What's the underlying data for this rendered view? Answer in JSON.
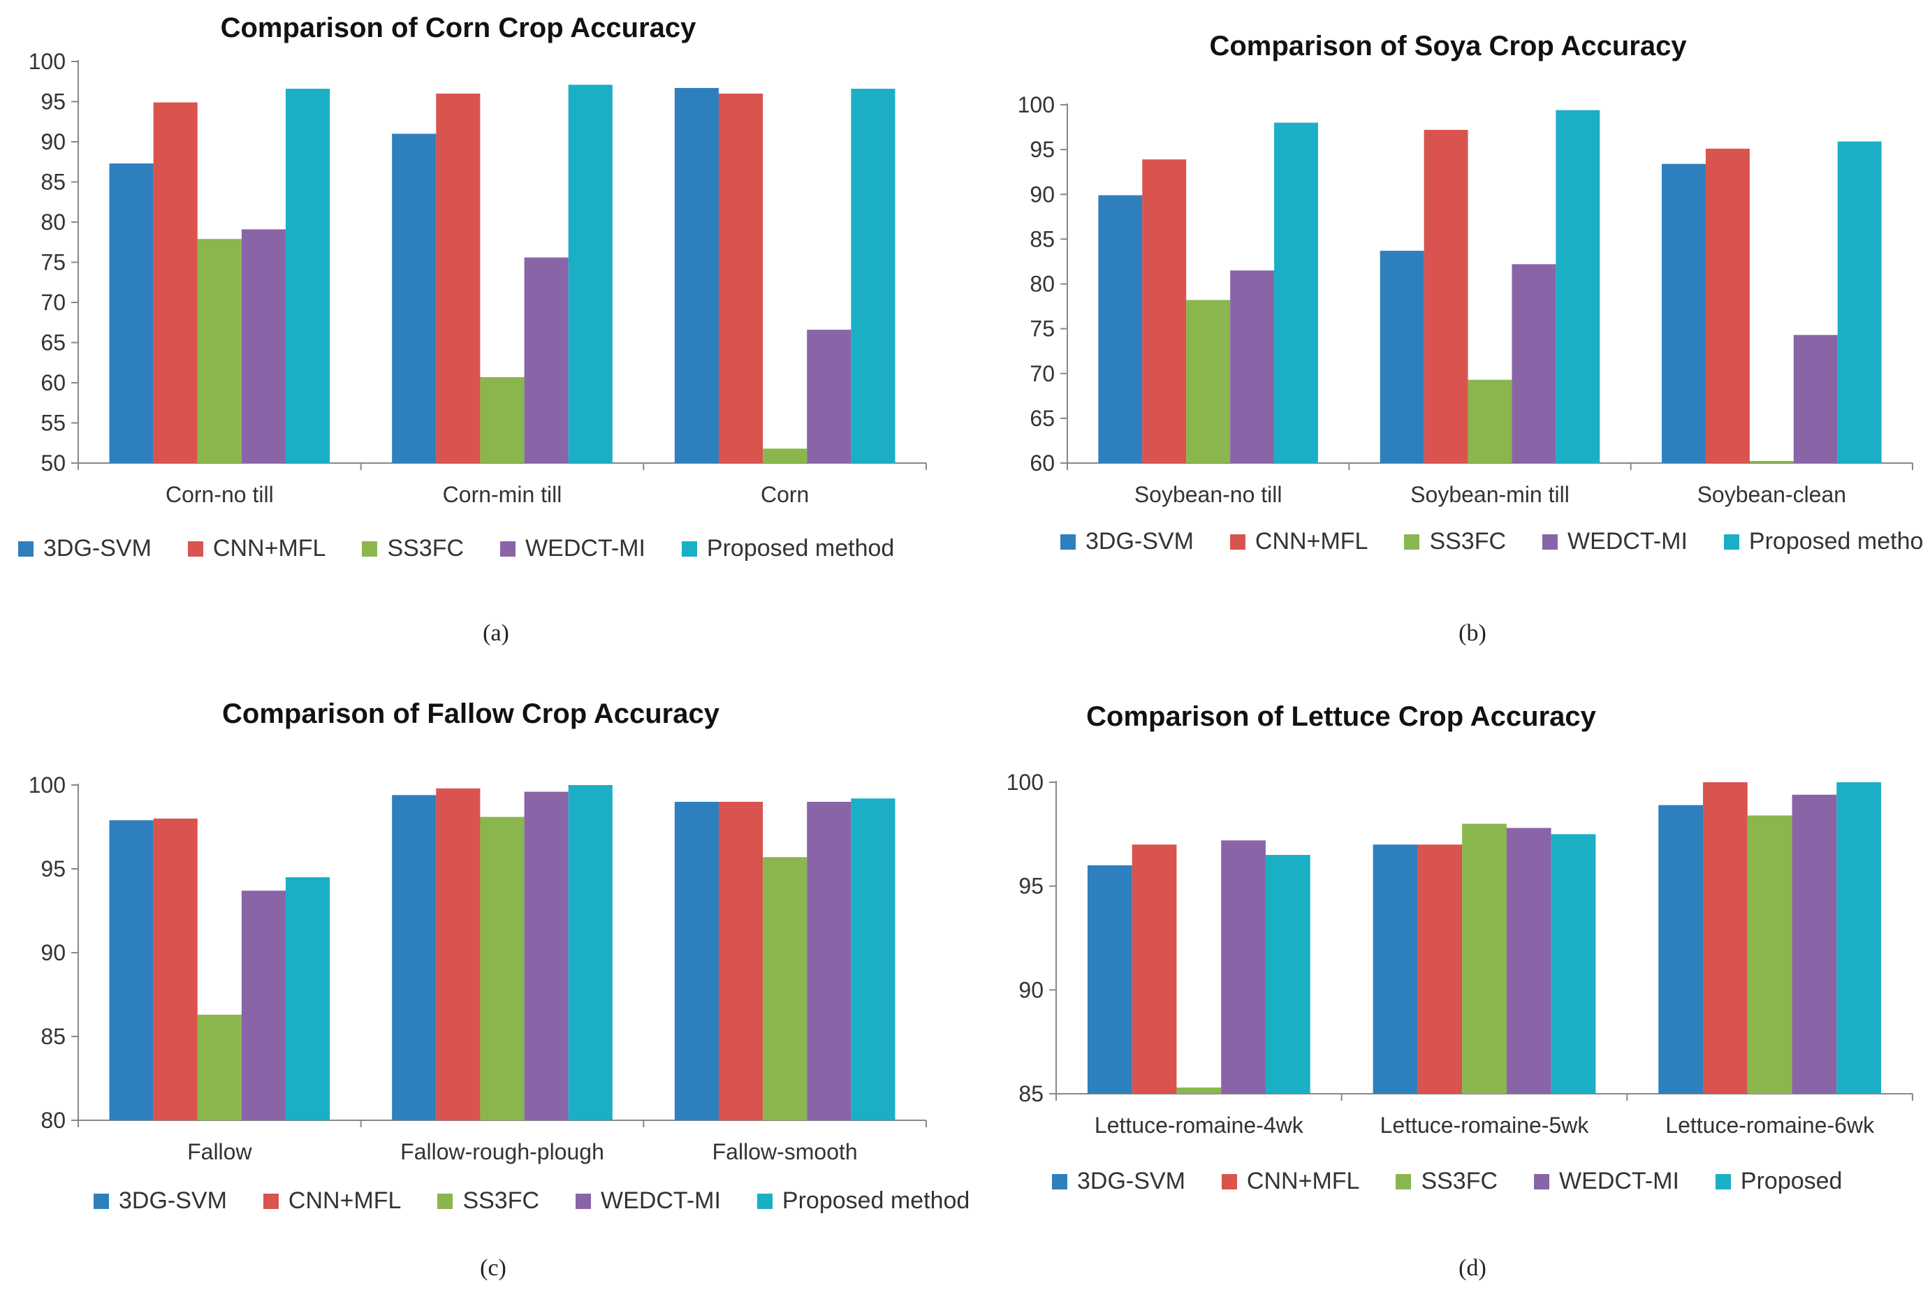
{
  "colors": {
    "3DG-SVM": "#2E7FBE",
    "CNN+MFL": "#D9534F",
    "SS3FC": "#8BB64E",
    "WEDCT-MI": "#8965A8",
    "Proposed": "#1BAFC6"
  },
  "chart_data": [
    {
      "type": "bar",
      "title": "Comparison of Corn Crop Accuracy",
      "caption": "(a)",
      "categories": [
        "Corn-no till",
        "Corn-min till",
        "Corn"
      ],
      "ylim": [
        50,
        100
      ],
      "yticks": [
        50,
        55,
        60,
        65,
        70,
        75,
        80,
        85,
        90,
        95,
        100
      ],
      "xlabel": "",
      "ylabel": "",
      "legend_position": "bottom",
      "series": [
        {
          "name": "3DG-SVM",
          "values": [
            87.3,
            91.0,
            96.7
          ]
        },
        {
          "name": "CNN+MFL",
          "values": [
            94.9,
            96.0,
            96.0
          ]
        },
        {
          "name": "SS3FC",
          "values": [
            77.9,
            60.7,
            51.8
          ]
        },
        {
          "name": "WEDCT-MI",
          "values": [
            79.1,
            75.6,
            66.6
          ]
        },
        {
          "name": "Proposed method",
          "values": [
            96.6,
            97.1,
            96.6
          ]
        }
      ]
    },
    {
      "type": "bar",
      "title": "Comparison of Soya Crop Accuracy",
      "caption": "(b)",
      "categories": [
        "Soybean-no till",
        "Soybean-min till",
        "Soybean-clean"
      ],
      "ylim": [
        60,
        100
      ],
      "yticks": [
        60,
        65,
        70,
        75,
        80,
        85,
        90,
        95,
        100
      ],
      "xlabel": "",
      "ylabel": "",
      "legend_position": "bottom",
      "series": [
        {
          "name": "3DG-SVM",
          "values": [
            89.9,
            83.7,
            93.4
          ]
        },
        {
          "name": "CNN+MFL",
          "values": [
            93.9,
            97.2,
            95.1
          ]
        },
        {
          "name": "SS3FC",
          "values": [
            78.2,
            69.3,
            59.8
          ]
        },
        {
          "name": "WEDCT-MI",
          "values": [
            81.5,
            82.2,
            74.3
          ]
        },
        {
          "name": "Proposed method",
          "values": [
            98.0,
            99.4,
            95.9
          ]
        }
      ]
    },
    {
      "type": "bar",
      "title": "Comparison of Fallow Crop Accuracy",
      "caption": "(c)",
      "categories": [
        "Fallow",
        "Fallow-rough-plough",
        "Fallow-smooth"
      ],
      "ylim": [
        80,
        100
      ],
      "yticks": [
        80,
        85,
        90,
        95,
        100
      ],
      "xlabel": "",
      "ylabel": "",
      "legend_position": "bottom",
      "series": [
        {
          "name": "3DG-SVM",
          "values": [
            97.9,
            99.4,
            99.0
          ]
        },
        {
          "name": "CNN+MFL",
          "values": [
            98.0,
            99.8,
            99.0
          ]
        },
        {
          "name": "SS3FC",
          "values": [
            86.3,
            98.1,
            95.7
          ]
        },
        {
          "name": "WEDCT-MI",
          "values": [
            93.7,
            99.6,
            99.0
          ]
        },
        {
          "name": "Proposed method",
          "values": [
            94.5,
            100.0,
            99.2
          ]
        }
      ]
    },
    {
      "type": "bar",
      "title": "Comparison of Lettuce Crop Accuracy",
      "caption": "(d)",
      "categories": [
        "Lettuce-romaine-4wk",
        "Lettuce-romaine-5wk",
        "Lettuce-romaine-6wk"
      ],
      "ylim": [
        85,
        100
      ],
      "yticks": [
        85,
        90,
        95,
        100
      ],
      "xlabel": "",
      "ylabel": "",
      "legend_position": "bottom",
      "series": [
        {
          "name": "3DG-SVM",
          "values": [
            96.0,
            97.0,
            98.9
          ]
        },
        {
          "name": "CNN+MFL",
          "values": [
            97.0,
            97.0,
            100.0
          ]
        },
        {
          "name": "SS3FC",
          "values": [
            85.3,
            98.0,
            98.4
          ]
        },
        {
          "name": "WEDCT-MI",
          "values": [
            97.2,
            97.8,
            99.4
          ]
        },
        {
          "name": "Proposed",
          "values": [
            96.5,
            97.5,
            100.0
          ]
        }
      ]
    }
  ]
}
